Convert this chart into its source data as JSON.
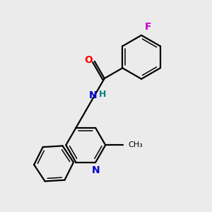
{
  "background_color": "#ebebeb",
  "bond_color": "#000000",
  "atom_colors": {
    "O": "#ff0000",
    "N": "#0000cc",
    "F": "#cc00cc",
    "H": "#008080",
    "C": "#000000"
  },
  "figsize": [
    3.0,
    3.0
  ],
  "dpi": 100
}
